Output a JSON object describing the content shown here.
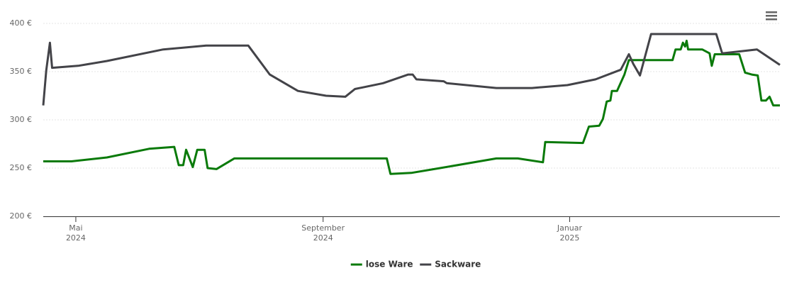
{
  "chart_data": {
    "type": "line",
    "xlim": [
      2024.289,
      2025.284
    ],
    "xticks": [
      {
        "value": 2024.333,
        "label": [
          "Mai",
          "2024"
        ]
      },
      {
        "value": 2024.667,
        "label": [
          "September",
          "2024"
        ]
      },
      {
        "value": 2025.0,
        "label": [
          "Januar",
          "2025"
        ]
      }
    ],
    "ylim": [
      200,
      400
    ],
    "yticks": [
      {
        "value": 200,
        "label": "200 €"
      },
      {
        "value": 250,
        "label": "250 €"
      },
      {
        "value": 300,
        "label": "300 €"
      },
      {
        "value": 350,
        "label": "350 €"
      },
      {
        "value": 400,
        "label": "400 €"
      }
    ],
    "grid": true,
    "legend": "bottom",
    "series": [
      {
        "name": "lose Ware",
        "color": "#0a7a0a",
        "x": [
          2024.289,
          2024.327,
          2024.375,
          2024.432,
          2024.466,
          2024.472,
          2024.478,
          2024.482,
          2024.491,
          2024.497,
          2024.507,
          2024.511,
          2024.523,
          2024.547,
          2024.753,
          2024.758,
          2024.786,
          2024.825,
          2024.901,
          2024.93,
          2024.964,
          2024.967,
          2025.018,
          2025.026,
          2025.04,
          2025.045,
          2025.05,
          2025.055,
          2025.057,
          2025.064,
          2025.074,
          2025.08,
          2025.139,
          2025.143,
          2025.15,
          2025.153,
          2025.156,
          2025.158,
          2025.16,
          2025.179,
          2025.189,
          2025.192,
          2025.196,
          2025.229,
          2025.237,
          2025.246,
          2025.254,
          2025.259,
          2025.265,
          2025.27,
          2025.275,
          2025.284
        ],
        "values": [
          257,
          257,
          261,
          270,
          272,
          253,
          253,
          269,
          251,
          269,
          269,
          250,
          249,
          260,
          260,
          244,
          245,
          250,
          260,
          260,
          256,
          277,
          276,
          293,
          294,
          301,
          319,
          320,
          330,
          330,
          347,
          362,
          362,
          373,
          373,
          380,
          376,
          382,
          373,
          373,
          369,
          356,
          368,
          368,
          349,
          347,
          346,
          320,
          320,
          324,
          315,
          315
        ]
      },
      {
        "name": "Sackware",
        "color": "#434348",
        "x": [
          2024.289,
          2024.293,
          2024.298,
          2024.301,
          2024.336,
          2024.375,
          2024.451,
          2024.509,
          2024.566,
          2024.595,
          2024.633,
          2024.671,
          2024.697,
          2024.71,
          2024.748,
          2024.782,
          2024.788,
          2024.793,
          2024.83,
          2024.834,
          2024.901,
          2024.949,
          2024.997,
          2025.035,
          2025.069,
          2025.08,
          2025.086,
          2025.095,
          2025.11,
          2025.198,
          2025.206,
          2025.253,
          2025.284
        ],
        "values": [
          315,
          351,
          380,
          354,
          356,
          361,
          373,
          377,
          377,
          347,
          330,
          325,
          324,
          332,
          338,
          347,
          347,
          342,
          340,
          338,
          333,
          333,
          336,
          342,
          352,
          368,
          358,
          346,
          389,
          389,
          369,
          373,
          357
        ]
      }
    ]
  }
}
